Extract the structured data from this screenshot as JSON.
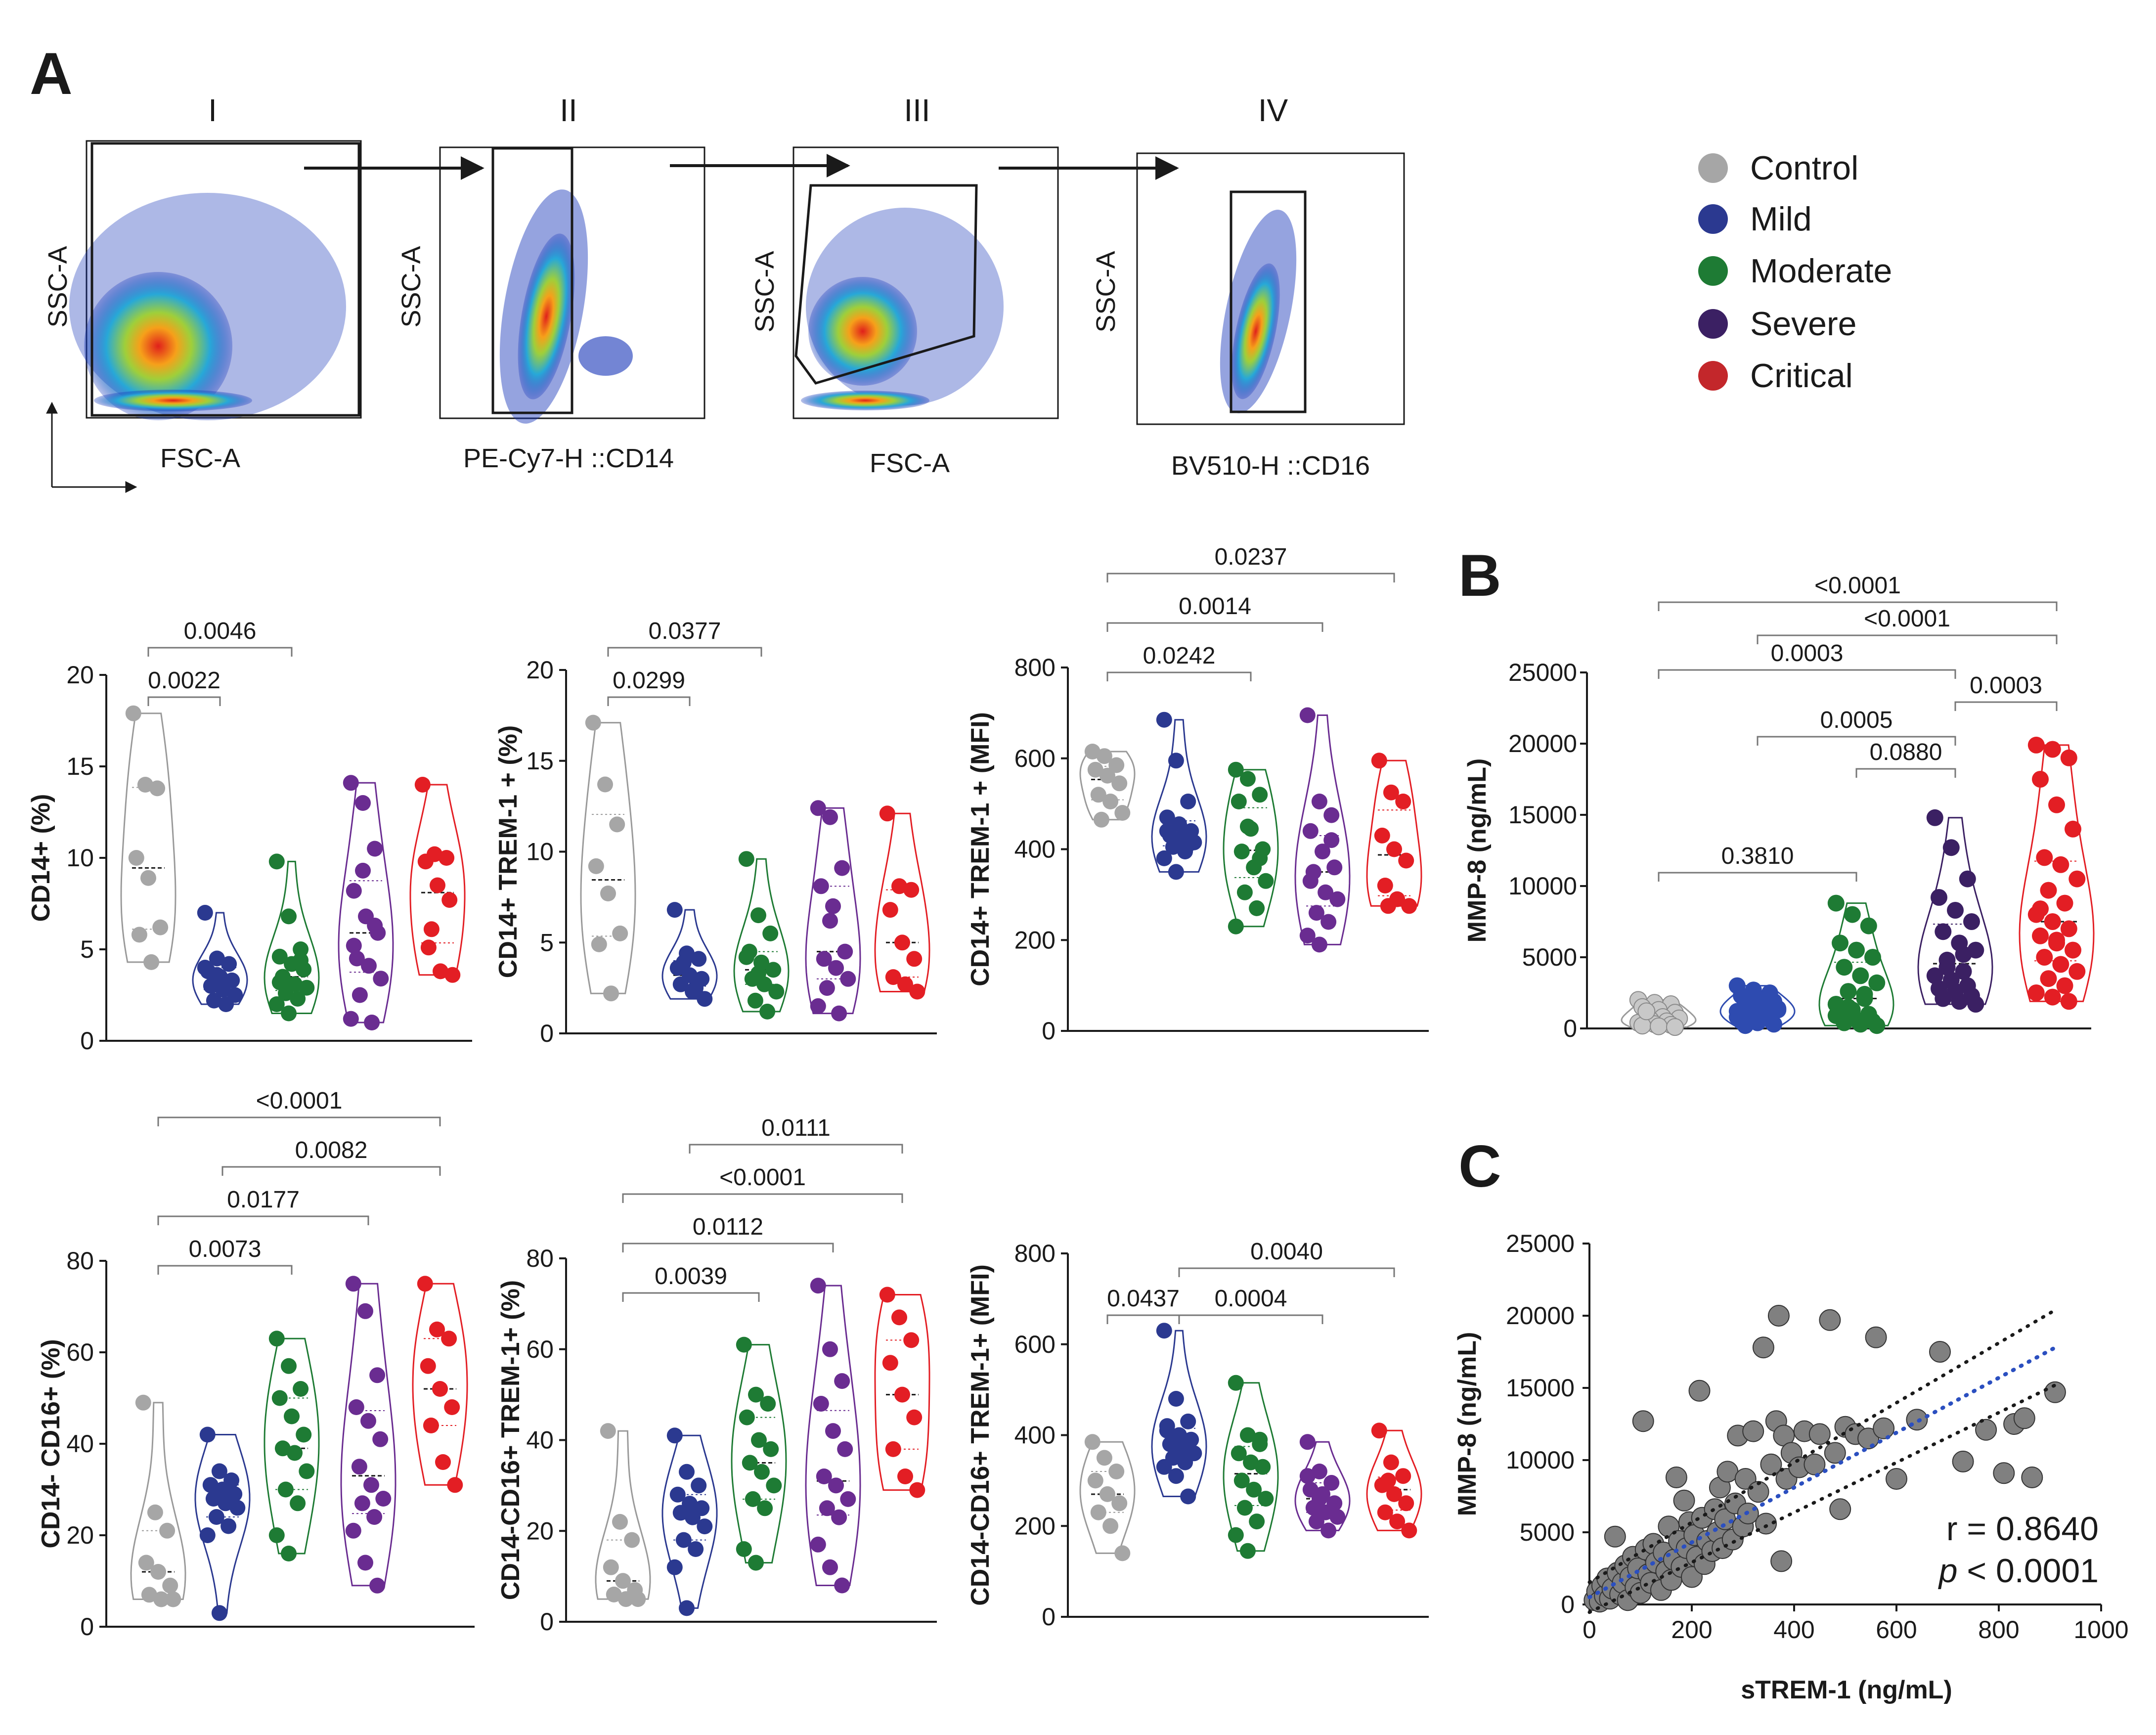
{
  "panels": {
    "A": "A",
    "B": "B",
    "C": "C"
  },
  "gating": {
    "plots": [
      {
        "roman": "I",
        "xlabel": "FSC-A",
        "ylabel": "SSC-A"
      },
      {
        "roman": "II",
        "xlabel": "PE-Cy7-H ::CD14",
        "ylabel": "SSC-A"
      },
      {
        "roman": "III",
        "xlabel": "FSC-A",
        "ylabel": "SSC-A"
      },
      {
        "roman": "IV",
        "xlabel": "BV510-H ::CD16",
        "ylabel": "SSC-A"
      }
    ]
  },
  "legend": [
    {
      "name": "Control",
      "color": "#a6a6a6"
    },
    {
      "name": "Mild",
      "color": "#2b3990"
    },
    {
      "name": "Moderate",
      "color": "#1e7b34"
    },
    {
      "name": "Severe",
      "color": "#6a2c91"
    },
    {
      "name": "Critical",
      "color": "#e31e24"
    }
  ],
  "chart_data": [
    {
      "id": "cd14",
      "type": "violin",
      "ylabel": "CD14+ (%)",
      "ylim": [
        0,
        20
      ],
      "yticks": [
        0,
        5,
        10,
        15,
        20
      ],
      "groups": [
        "Control",
        "Mild",
        "Moderate",
        "Severe",
        "Critical"
      ],
      "values": [
        [
          17.9,
          14,
          13.8,
          10,
          8.9,
          6.2,
          5.8,
          4.3
        ],
        [
          7,
          4.5,
          4.2,
          3.8,
          3.5,
          3.3,
          3,
          2.8,
          2.5,
          2.2,
          2,
          4,
          3.6
        ],
        [
          9.8,
          6.8,
          5,
          4.6,
          4.2,
          3.9,
          3.5,
          3.1,
          2.9,
          2.6,
          2.3,
          2,
          1.5,
          4.4,
          3.2
        ],
        [
          14.1,
          13,
          10.5,
          8.2,
          6.8,
          5.9,
          4.5,
          4.1,
          3.4,
          2.5,
          1,
          1.2,
          9.3,
          6.3,
          5.2
        ],
        [
          14,
          10.2,
          10,
          9.8,
          8.5,
          7.7,
          5.1,
          3.8,
          3.6,
          6.1
        ]
      ],
      "comparisons": [
        {
          "groups": [
            "Control",
            "Mild"
          ],
          "p": "0.0022"
        },
        {
          "groups": [
            "Control",
            "Moderate"
          ],
          "p": "0.0046"
        }
      ]
    },
    {
      "id": "trem",
      "type": "violin",
      "ylabel": "CD14+ TREM-1 + (%)",
      "ylim": [
        0,
        20
      ],
      "yticks": [
        0,
        5,
        10,
        15,
        20
      ],
      "groups": [
        "Control",
        "Mild",
        "Moderate",
        "Severe",
        "Critical"
      ],
      "values": [
        [
          17.1,
          13.7,
          11.5,
          9.2,
          7.7,
          5.5,
          4.9,
          2.2
        ],
        [
          6.8,
          4.4,
          4.1,
          3.6,
          3.2,
          3,
          2.7,
          2.3,
          1.9,
          3.9,
          2.5
        ],
        [
          9.6,
          6.5,
          5.5,
          4.5,
          3.9,
          3.5,
          3,
          2.7,
          2.3,
          1.8,
          1.2,
          4.2,
          3.3
        ],
        [
          12.4,
          11.9,
          9.1,
          8.1,
          7,
          4.5,
          4.1,
          3.6,
          3,
          2.5,
          1.1,
          1.5,
          6.2
        ],
        [
          12.1,
          8.1,
          7.9,
          6.8,
          5,
          4.1,
          3.1,
          2.7,
          2.3
        ]
      ],
      "comparisons": [
        {
          "groups": [
            "Control",
            "Mild"
          ],
          "p": "0.0299"
        },
        {
          "groups": [
            "Control",
            "Moderate"
          ],
          "p": "0.0377"
        }
      ]
    },
    {
      "id": "trem_mfi",
      "type": "violin",
      "ylabel": "CD14+ TREM-1 + (MFI)",
      "ylim": [
        0,
        800
      ],
      "yticks": [
        0,
        200,
        400,
        600,
        800
      ],
      "groups": [
        "Control",
        "Mild",
        "Moderate",
        "Severe",
        "Critical"
      ],
      "values": [
        [
          615,
          605,
          585,
          575,
          562,
          545,
          520,
          505,
          480,
          465
        ],
        [
          685,
          595,
          505,
          470,
          455,
          440,
          430,
          425,
          415,
          405,
          395,
          380,
          350,
          410,
          440
        ],
        [
          575,
          555,
          520,
          505,
          445,
          400,
          395,
          360,
          330,
          305,
          270,
          230,
          450,
          380
        ],
        [
          695,
          505,
          475,
          440,
          395,
          360,
          350,
          305,
          290,
          260,
          240,
          210,
          190,
          420,
          330
        ],
        [
          595,
          525,
          505,
          430,
          400,
          375,
          320,
          290,
          275,
          275
        ]
      ],
      "comparisons": [
        {
          "groups": [
            "Control",
            "Moderate"
          ],
          "p": "0.0242"
        },
        {
          "groups": [
            "Control",
            "Severe"
          ],
          "p": "0.0014"
        },
        {
          "groups": [
            "Control",
            "Critical"
          ],
          "p": "0.0237"
        }
      ]
    },
    {
      "id": "cd16",
      "type": "violin",
      "ylabel": "CD14- CD16+ (%)",
      "ylim": [
        0,
        80
      ],
      "yticks": [
        0,
        20,
        40,
        60,
        80
      ],
      "groups": [
        "Control",
        "Mild",
        "Moderate",
        "Severe",
        "Critical"
      ],
      "values": [
        [
          49,
          25,
          21,
          14,
          12,
          9,
          7,
          6,
          6
        ],
        [
          42,
          34,
          32,
          31,
          30,
          29,
          28,
          27,
          26,
          24,
          22,
          20,
          3
        ],
        [
          63,
          57,
          52,
          50,
          46,
          42,
          39,
          38,
          34,
          30,
          27,
          20,
          16
        ],
        [
          75,
          69,
          55,
          48,
          45,
          41,
          35,
          31,
          28,
          27,
          24,
          21,
          14,
          9
        ],
        [
          75,
          65,
          63,
          57,
          52,
          48,
          44,
          36,
          31
        ]
      ],
      "comparisons": [
        {
          "groups": [
            "Control",
            "Moderate"
          ],
          "p": "0.0073"
        },
        {
          "groups": [
            "Control",
            "Severe"
          ],
          "p": "0.0177"
        },
        {
          "groups": [
            "Mild",
            "Critical"
          ],
          "p": "0.0082"
        },
        {
          "groups": [
            "Control",
            "Critical"
          ],
          "p": "<0.0001"
        }
      ]
    },
    {
      "id": "cd16_trem",
      "type": "violin",
      "ylabel": "CD14-CD16+ TREM-1+ (%)",
      "ylim": [
        0,
        80
      ],
      "yticks": [
        0,
        20,
        40,
        60,
        80
      ],
      "groups": [
        "Control",
        "Mild",
        "Moderate",
        "Severe",
        "Critical"
      ],
      "values": [
        [
          42,
          22,
          18,
          12,
          9,
          7,
          6,
          5,
          5
        ],
        [
          41,
          33,
          30,
          28,
          26,
          25,
          24,
          23,
          21,
          18,
          16,
          12,
          3
        ],
        [
          61,
          50,
          48,
          45,
          40,
          38,
          35,
          33,
          30,
          27,
          25,
          16,
          13
        ],
        [
          74,
          60,
          53,
          48,
          42,
          38,
          32,
          30,
          27,
          25,
          23,
          17,
          12,
          8
        ],
        [
          72,
          67,
          62,
          57,
          50,
          45,
          38,
          32,
          29
        ]
      ],
      "comparisons": [
        {
          "groups": [
            "Control",
            "Moderate"
          ],
          "p": "0.0039"
        },
        {
          "groups": [
            "Control",
            "Severe"
          ],
          "p": "0.0112"
        },
        {
          "groups": [
            "Control",
            "Critical"
          ],
          "p": "<0.0001"
        },
        {
          "groups": [
            "Mild",
            "Critical"
          ],
          "p": "0.0111"
        }
      ]
    },
    {
      "id": "cd16_mfi",
      "type": "violin",
      "ylabel": "CD14-CD16+ TREM-1+ (MFI)",
      "ylim": [
        0,
        800
      ],
      "yticks": [
        0,
        200,
        400,
        600,
        800
      ],
      "groups": [
        "Control",
        "Mild",
        "Moderate",
        "Severe",
        "Critical"
      ],
      "values": [
        [
          385,
          350,
          320,
          300,
          270,
          250,
          230,
          200,
          140
        ],
        [
          630,
          480,
          430,
          410,
          400,
          390,
          380,
          370,
          360,
          350,
          340,
          330,
          310,
          265,
          420
        ],
        [
          515,
          400,
          390,
          360,
          340,
          330,
          300,
          280,
          260,
          240,
          210,
          180,
          145,
          380
        ],
        [
          385,
          320,
          295,
          280,
          270,
          250,
          240,
          230,
          220,
          210,
          190,
          310,
          260
        ],
        [
          410,
          340,
          310,
          290,
          270,
          250,
          230,
          210,
          190,
          300
        ]
      ],
      "comparisons": [
        {
          "groups": [
            "Control",
            "Mild"
          ],
          "p": "0.0437"
        },
        {
          "groups": [
            "Mild",
            "Severe"
          ],
          "p": "0.0004"
        },
        {
          "groups": [
            "Mild",
            "Critical"
          ],
          "p": "0.0040"
        }
      ]
    },
    {
      "id": "mmp8",
      "type": "violin",
      "ylabel": "MMP-8 (ng/mL)",
      "ylim": [
        0,
        25000
      ],
      "yticks": [
        0,
        5000,
        10000,
        15000,
        20000,
        25000
      ],
      "groups": [
        "Control",
        "Mild",
        "Moderate",
        "Severe",
        "Critical"
      ],
      "values": [
        [
          2000,
          1800,
          1700,
          1500,
          1300,
          1100,
          900,
          800,
          700,
          600,
          500,
          400,
          300,
          250,
          200,
          150,
          100,
          1200
        ],
        [
          3000,
          2700,
          2500,
          2300,
          2100,
          1900,
          1700,
          1500,
          1300,
          1100,
          900,
          800,
          700,
          600,
          500,
          400,
          300,
          200,
          1000,
          1400,
          1600,
          2000,
          1200
        ],
        [
          8800,
          8000,
          7200,
          6000,
          5500,
          5000,
          4300,
          3700,
          3200,
          2600,
          2100,
          1700,
          1300,
          1000,
          800,
          600,
          500,
          400,
          300,
          200,
          1500,
          2400,
          900
        ],
        [
          14800,
          12700,
          10500,
          9200,
          8300,
          7500,
          6800,
          6000,
          5500,
          4800,
          4000,
          3700,
          3400,
          3000,
          2800,
          2600,
          2300,
          2100,
          1900,
          1700,
          4300,
          5200
        ],
        [
          19900,
          19600,
          19000,
          17500,
          15700,
          14000,
          12000,
          11500,
          10500,
          9700,
          8800,
          8000,
          7500,
          7000,
          6500,
          6000,
          5500,
          5000,
          4500,
          4000,
          3500,
          3000,
          2500,
          2200,
          1900,
          8400,
          6200
        ]
      ],
      "comparisons": [
        {
          "groups": [
            "Control",
            "Moderate"
          ],
          "p": "0.3810"
        },
        {
          "groups": [
            "Moderate",
            "Severe"
          ],
          "p": "0.0880"
        },
        {
          "groups": [
            "Mild",
            "Severe"
          ],
          "p": "0.0005"
        },
        {
          "groups": [
            "Severe",
            "Critical"
          ],
          "p": "0.0003"
        },
        {
          "groups": [
            "Control",
            "Severe"
          ],
          "p": "0.0003"
        },
        {
          "groups": [
            "Mild",
            "Critical"
          ],
          "p": "<0.0001"
        },
        {
          "groups": [
            "Control",
            "Critical"
          ],
          "p": "<0.0001"
        }
      ]
    },
    {
      "id": "corr",
      "type": "scatter",
      "xlabel": "sTREM-1 (ng/mL)",
      "ylabel": "MMP-8 (ng/mL)",
      "xlim": [
        0,
        1000
      ],
      "ylim": [
        0,
        25000
      ],
      "xticks": [
        0,
        200,
        400,
        600,
        800,
        1000
      ],
      "yticks": [
        0,
        5000,
        10000,
        15000,
        20000,
        25000
      ],
      "r_text": "r = 0.8640",
      "p_prefix": "p",
      "p_text": " < 0.0001",
      "regression": {
        "slope": 19,
        "intercept": 500,
        "x_range": [
          0,
          910
        ],
        "ci_offset": 2600
      },
      "points": [
        [
          10,
          300
        ],
        [
          15,
          900
        ],
        [
          20,
          200
        ],
        [
          25,
          1300
        ],
        [
          30,
          600
        ],
        [
          35,
          1800
        ],
        [
          40,
          400
        ],
        [
          45,
          1100
        ],
        [
          50,
          4700
        ],
        [
          55,
          2200
        ],
        [
          60,
          700
        ],
        [
          65,
          1500
        ],
        [
          70,
          2700
        ],
        [
          75,
          300
        ],
        [
          80,
          1900
        ],
        [
          85,
          3300
        ],
        [
          90,
          1200
        ],
        [
          95,
          2500
        ],
        [
          100,
          800
        ],
        [
          105,
          12700
        ],
        [
          110,
          3800
        ],
        [
          115,
          2100
        ],
        [
          120,
          1500
        ],
        [
          125,
          4200
        ],
        [
          130,
          2900
        ],
        [
          140,
          1000
        ],
        [
          145,
          3600
        ],
        [
          150,
          2300
        ],
        [
          155,
          5400
        ],
        [
          160,
          1700
        ],
        [
          165,
          3100
        ],
        [
          170,
          8800
        ],
        [
          175,
          4400
        ],
        [
          180,
          2600
        ],
        [
          185,
          7200
        ],
        [
          190,
          3900
        ],
        [
          195,
          5700
        ],
        [
          200,
          1900
        ],
        [
          205,
          4800
        ],
        [
          210,
          3300
        ],
        [
          215,
          14800
        ],
        [
          220,
          6000
        ],
        [
          225,
          2800
        ],
        [
          230,
          4400
        ],
        [
          240,
          3700
        ],
        [
          245,
          6600
        ],
        [
          250,
          5000
        ],
        [
          255,
          8100
        ],
        [
          260,
          3900
        ],
        [
          265,
          5900
        ],
        [
          270,
          9200
        ],
        [
          280,
          4500
        ],
        [
          285,
          7000
        ],
        [
          290,
          11700
        ],
        [
          300,
          5400
        ],
        [
          305,
          8700
        ],
        [
          310,
          6300
        ],
        [
          320,
          12000
        ],
        [
          330,
          7800
        ],
        [
          340,
          17800
        ],
        [
          345,
          5600
        ],
        [
          355,
          9700
        ],
        [
          365,
          12700
        ],
        [
          370,
          20000
        ],
        [
          375,
          3000
        ],
        [
          380,
          11700
        ],
        [
          385,
          8700
        ],
        [
          395,
          10500
        ],
        [
          410,
          9500
        ],
        [
          420,
          12000
        ],
        [
          440,
          9700
        ],
        [
          450,
          11800
        ],
        [
          470,
          19700
        ],
        [
          480,
          10500
        ],
        [
          490,
          6600
        ],
        [
          500,
          12300
        ],
        [
          520,
          11800
        ],
        [
          545,
          11500
        ],
        [
          560,
          18500
        ],
        [
          575,
          12200
        ],
        [
          600,
          8700
        ],
        [
          640,
          12800
        ],
        [
          685,
          17500
        ],
        [
          730,
          9900
        ],
        [
          775,
          12100
        ],
        [
          810,
          9100
        ],
        [
          830,
          12500
        ],
        [
          850,
          12900
        ],
        [
          865,
          8800
        ],
        [
          910,
          14700
        ]
      ]
    }
  ]
}
